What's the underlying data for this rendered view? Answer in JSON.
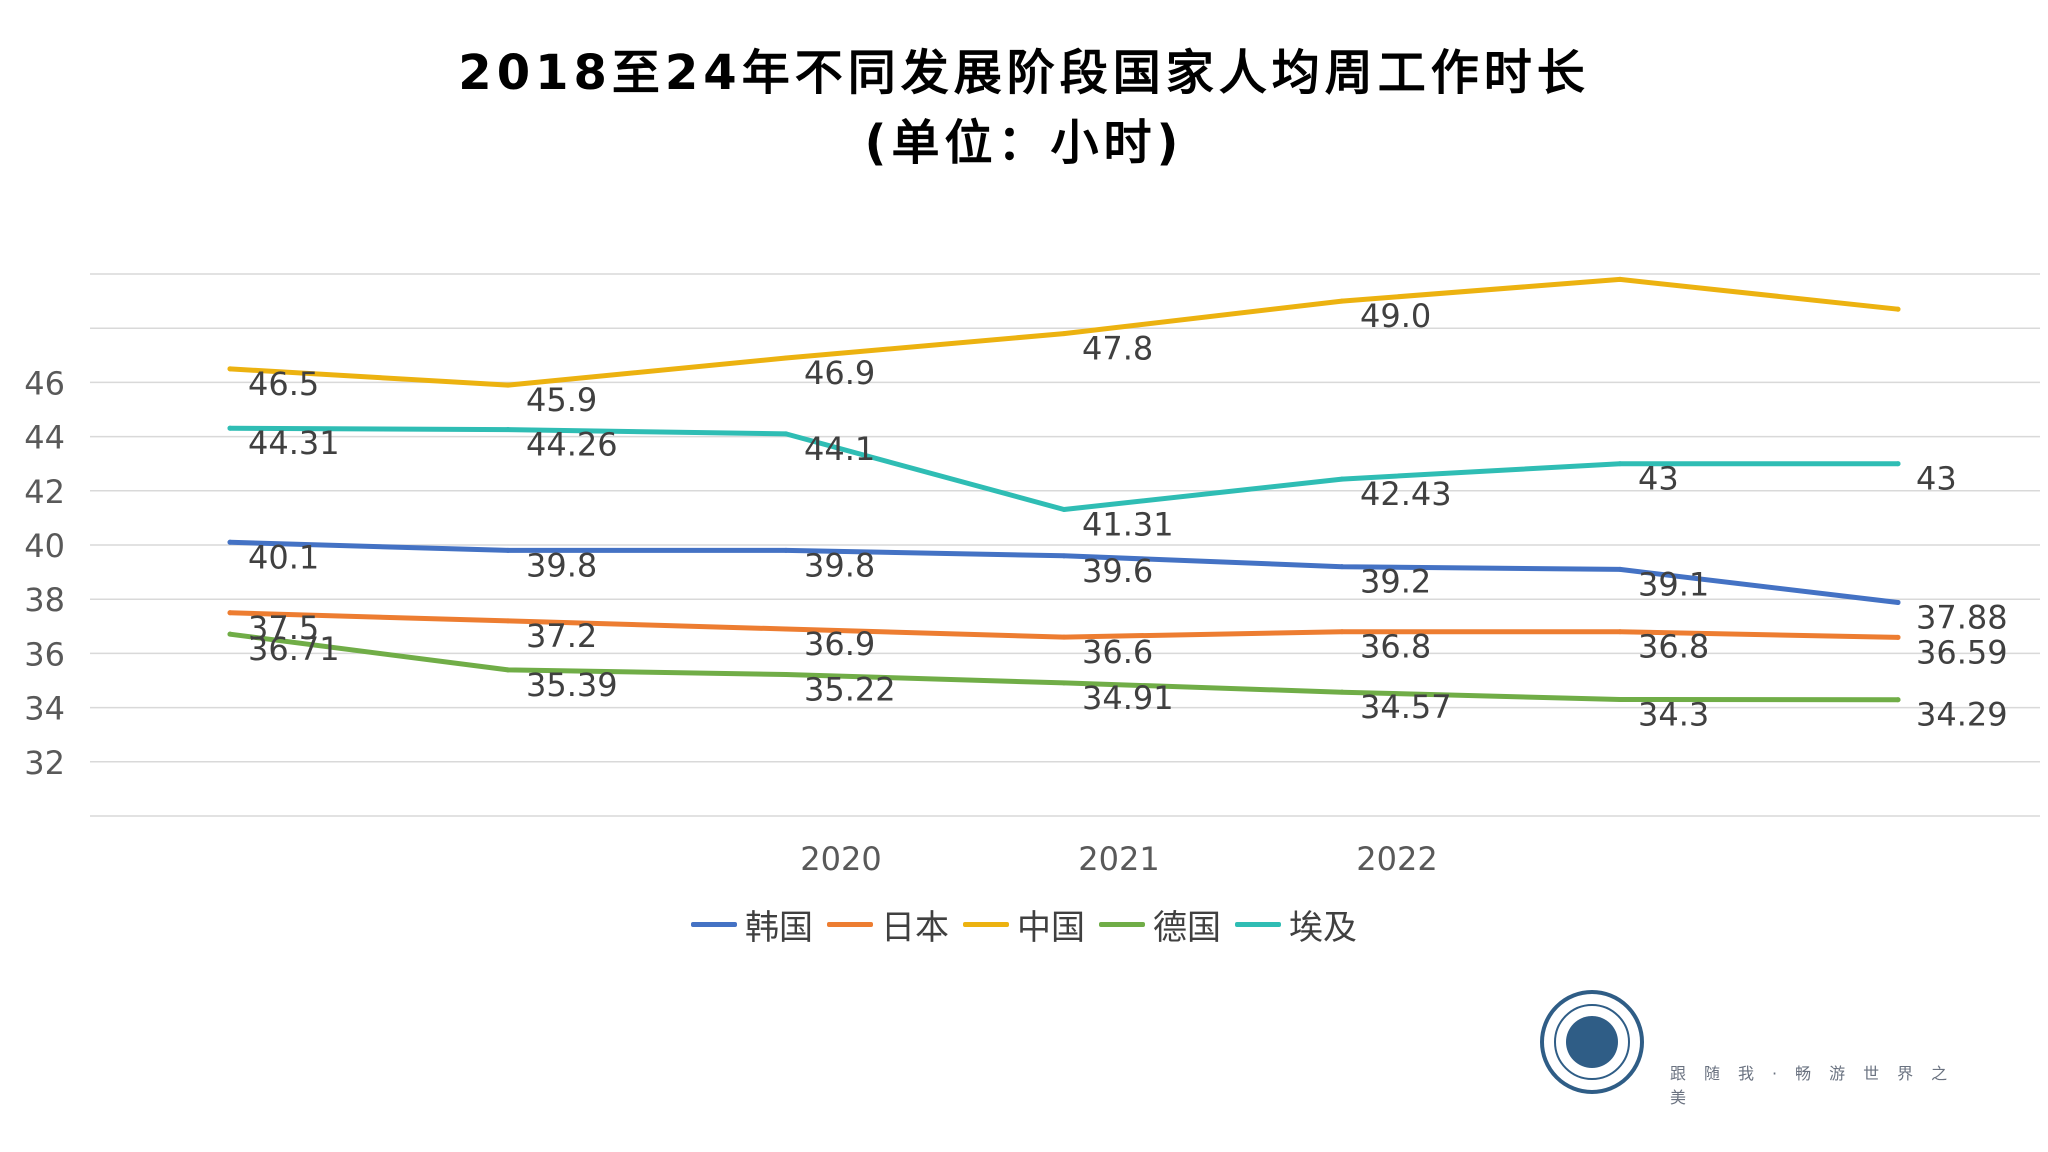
{
  "title_line1": "2018至24年不同发展阶段国家人均周工作时长",
  "title_line2": "(单位：小时)",
  "chart_data": {
    "type": "line",
    "title": "2018至24年不同发展阶段国家人均周工作时长 (单位：小时)",
    "x_labels_visible": {
      "2": "2020",
      "3": "2021",
      "4": "2022"
    },
    "categories": [
      "",
      "",
      "2020",
      "2021",
      "2022",
      "",
      ""
    ],
    "y_ticks": [
      "32",
      "34",
      "36",
      "38",
      "40",
      "42",
      "44",
      "46"
    ],
    "ylim": [
      30,
      50
    ],
    "grid": true,
    "legend_placement": "bottom",
    "series": [
      {
        "name": "韩国",
        "color": "#4472c4",
        "values": [
          40.1,
          39.8,
          39.8,
          39.6,
          39.2,
          39.1,
          37.88
        ],
        "labels": [
          "40.1",
          "39.8",
          "39.8",
          "39.6",
          "39.2",
          "39.1",
          "37.88"
        ]
      },
      {
        "name": "日本",
        "color": "#ed7d31",
        "values": [
          37.5,
          37.2,
          36.9,
          36.6,
          36.8,
          36.8,
          36.59
        ],
        "labels": [
          "37.5",
          "37.2",
          "36.9",
          "36.6",
          "36.8",
          "36.8",
          "36.59"
        ]
      },
      {
        "name": "中国",
        "color": "#ecb210",
        "values": [
          46.5,
          45.9,
          46.9,
          47.8,
          49.0,
          49.8,
          48.7
        ],
        "labels": [
          "46.5",
          "45.9",
          "46.9",
          "47.8",
          "49.0",
          "",
          ""
        ]
      },
      {
        "name": "德国",
        "color": "#70ad47",
        "values": [
          36.71,
          35.39,
          35.22,
          34.91,
          34.57,
          34.3,
          34.29
        ],
        "labels": [
          "36.71",
          "35.39",
          "35.22",
          "34.91",
          "34.57",
          "34.3",
          "34.29"
        ]
      },
      {
        "name": "埃及",
        "color": "#2fbdb4",
        "values": [
          44.31,
          44.26,
          44.1,
          41.31,
          42.43,
          43,
          43
        ],
        "labels": [
          "44.31",
          "44.26",
          "44.1",
          "41.31",
          "42.43",
          "43",
          "43"
        ]
      }
    ]
  },
  "logo": {
    "text": "跟随我·畅游世界之美"
  }
}
